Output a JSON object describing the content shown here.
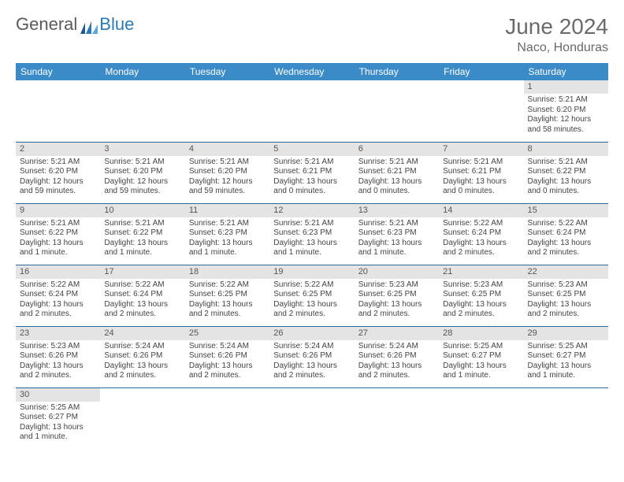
{
  "logo": {
    "text1": "General",
    "text2": "Blue"
  },
  "title": "June 2024",
  "location": "Naco, Honduras",
  "colors": {
    "header_bg": "#3b8bc8",
    "header_text": "#ffffff",
    "daynum_bg": "#e4e4e4",
    "cell_border": "#2a6aa0",
    "title_color": "#6a6a6a"
  },
  "weekdays": [
    "Sunday",
    "Monday",
    "Tuesday",
    "Wednesday",
    "Thursday",
    "Friday",
    "Saturday"
  ],
  "weeks": [
    [
      null,
      null,
      null,
      null,
      null,
      null,
      {
        "n": "1",
        "sr": "Sunrise: 5:21 AM",
        "ss": "Sunset: 6:20 PM",
        "dl": "Daylight: 12 hours and 58 minutes."
      }
    ],
    [
      {
        "n": "2",
        "sr": "Sunrise: 5:21 AM",
        "ss": "Sunset: 6:20 PM",
        "dl": "Daylight: 12 hours and 59 minutes."
      },
      {
        "n": "3",
        "sr": "Sunrise: 5:21 AM",
        "ss": "Sunset: 6:20 PM",
        "dl": "Daylight: 12 hours and 59 minutes."
      },
      {
        "n": "4",
        "sr": "Sunrise: 5:21 AM",
        "ss": "Sunset: 6:20 PM",
        "dl": "Daylight: 12 hours and 59 minutes."
      },
      {
        "n": "5",
        "sr": "Sunrise: 5:21 AM",
        "ss": "Sunset: 6:21 PM",
        "dl": "Daylight: 13 hours and 0 minutes."
      },
      {
        "n": "6",
        "sr": "Sunrise: 5:21 AM",
        "ss": "Sunset: 6:21 PM",
        "dl": "Daylight: 13 hours and 0 minutes."
      },
      {
        "n": "7",
        "sr": "Sunrise: 5:21 AM",
        "ss": "Sunset: 6:21 PM",
        "dl": "Daylight: 13 hours and 0 minutes."
      },
      {
        "n": "8",
        "sr": "Sunrise: 5:21 AM",
        "ss": "Sunset: 6:22 PM",
        "dl": "Daylight: 13 hours and 0 minutes."
      }
    ],
    [
      {
        "n": "9",
        "sr": "Sunrise: 5:21 AM",
        "ss": "Sunset: 6:22 PM",
        "dl": "Daylight: 13 hours and 1 minute."
      },
      {
        "n": "10",
        "sr": "Sunrise: 5:21 AM",
        "ss": "Sunset: 6:22 PM",
        "dl": "Daylight: 13 hours and 1 minute."
      },
      {
        "n": "11",
        "sr": "Sunrise: 5:21 AM",
        "ss": "Sunset: 6:23 PM",
        "dl": "Daylight: 13 hours and 1 minute."
      },
      {
        "n": "12",
        "sr": "Sunrise: 5:21 AM",
        "ss": "Sunset: 6:23 PM",
        "dl": "Daylight: 13 hours and 1 minute."
      },
      {
        "n": "13",
        "sr": "Sunrise: 5:21 AM",
        "ss": "Sunset: 6:23 PM",
        "dl": "Daylight: 13 hours and 1 minute."
      },
      {
        "n": "14",
        "sr": "Sunrise: 5:22 AM",
        "ss": "Sunset: 6:24 PM",
        "dl": "Daylight: 13 hours and 2 minutes."
      },
      {
        "n": "15",
        "sr": "Sunrise: 5:22 AM",
        "ss": "Sunset: 6:24 PM",
        "dl": "Daylight: 13 hours and 2 minutes."
      }
    ],
    [
      {
        "n": "16",
        "sr": "Sunrise: 5:22 AM",
        "ss": "Sunset: 6:24 PM",
        "dl": "Daylight: 13 hours and 2 minutes."
      },
      {
        "n": "17",
        "sr": "Sunrise: 5:22 AM",
        "ss": "Sunset: 6:24 PM",
        "dl": "Daylight: 13 hours and 2 minutes."
      },
      {
        "n": "18",
        "sr": "Sunrise: 5:22 AM",
        "ss": "Sunset: 6:25 PM",
        "dl": "Daylight: 13 hours and 2 minutes."
      },
      {
        "n": "19",
        "sr": "Sunrise: 5:22 AM",
        "ss": "Sunset: 6:25 PM",
        "dl": "Daylight: 13 hours and 2 minutes."
      },
      {
        "n": "20",
        "sr": "Sunrise: 5:23 AM",
        "ss": "Sunset: 6:25 PM",
        "dl": "Daylight: 13 hours and 2 minutes."
      },
      {
        "n": "21",
        "sr": "Sunrise: 5:23 AM",
        "ss": "Sunset: 6:25 PM",
        "dl": "Daylight: 13 hours and 2 minutes."
      },
      {
        "n": "22",
        "sr": "Sunrise: 5:23 AM",
        "ss": "Sunset: 6:25 PM",
        "dl": "Daylight: 13 hours and 2 minutes."
      }
    ],
    [
      {
        "n": "23",
        "sr": "Sunrise: 5:23 AM",
        "ss": "Sunset: 6:26 PM",
        "dl": "Daylight: 13 hours and 2 minutes."
      },
      {
        "n": "24",
        "sr": "Sunrise: 5:24 AM",
        "ss": "Sunset: 6:26 PM",
        "dl": "Daylight: 13 hours and 2 minutes."
      },
      {
        "n": "25",
        "sr": "Sunrise: 5:24 AM",
        "ss": "Sunset: 6:26 PM",
        "dl": "Daylight: 13 hours and 2 minutes."
      },
      {
        "n": "26",
        "sr": "Sunrise: 5:24 AM",
        "ss": "Sunset: 6:26 PM",
        "dl": "Daylight: 13 hours and 2 minutes."
      },
      {
        "n": "27",
        "sr": "Sunrise: 5:24 AM",
        "ss": "Sunset: 6:26 PM",
        "dl": "Daylight: 13 hours and 2 minutes."
      },
      {
        "n": "28",
        "sr": "Sunrise: 5:25 AM",
        "ss": "Sunset: 6:27 PM",
        "dl": "Daylight: 13 hours and 1 minute."
      },
      {
        "n": "29",
        "sr": "Sunrise: 5:25 AM",
        "ss": "Sunset: 6:27 PM",
        "dl": "Daylight: 13 hours and 1 minute."
      }
    ],
    [
      {
        "n": "30",
        "sr": "Sunrise: 5:25 AM",
        "ss": "Sunset: 6:27 PM",
        "dl": "Daylight: 13 hours and 1 minute."
      },
      null,
      null,
      null,
      null,
      null,
      null
    ]
  ]
}
